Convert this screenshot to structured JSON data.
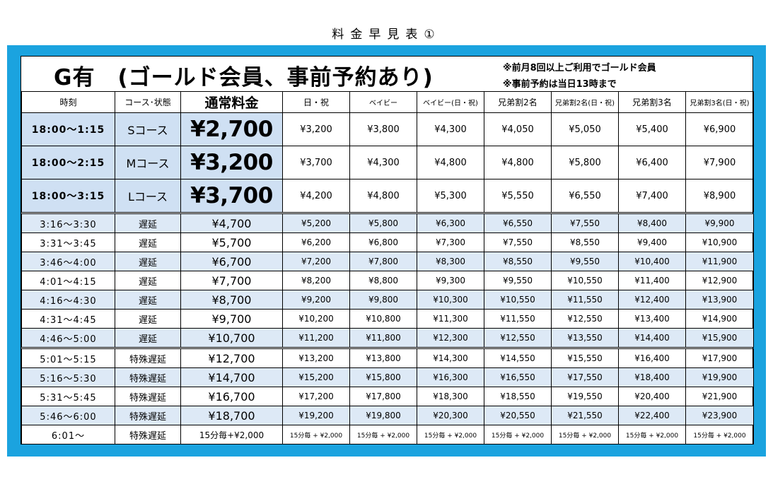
{
  "page_title": "料金早見表①",
  "header": {
    "title": "G有　(ゴールド会員、事前予約あり)",
    "note1": "※前月8回以上ご利用でゴールド会員",
    "note2": "※事前予約は当日13時まで"
  },
  "columns": [
    "時刻",
    "コース･状態",
    "通常料金",
    "日・祝",
    "ベイビー",
    "ベイビー(日・祝)",
    "兄弟割2名",
    "兄弟割2名(日・祝)",
    "兄弟割3名",
    "兄弟割3名(日・祝)"
  ],
  "main_rows": [
    {
      "time": "18:00〜1:15",
      "course": "Sコース",
      "normal": "¥2,700",
      "prices": [
        "¥3,200",
        "¥3,800",
        "¥4,300",
        "¥4,050",
        "¥5,050",
        "¥5,400",
        "¥6,900"
      ]
    },
    {
      "time": "18:00〜2:15",
      "course": "Mコース",
      "normal": "¥3,200",
      "prices": [
        "¥3,700",
        "¥4,300",
        "¥4,800",
        "¥4,800",
        "¥5,800",
        "¥6,400",
        "¥7,900"
      ]
    },
    {
      "time": "18:00〜3:15",
      "course": "Lコース",
      "normal": "¥3,700",
      "prices": [
        "¥4,200",
        "¥4,800",
        "¥5,300",
        "¥5,550",
        "¥6,550",
        "¥7,400",
        "¥8,900"
      ]
    }
  ],
  "late_rows": [
    {
      "time": "3:16〜3:30",
      "course": "遅延",
      "normal": "¥4,700",
      "prices": [
        "¥5,200",
        "¥5,800",
        "¥6,300",
        "¥6,550",
        "¥7,550",
        "¥8,400",
        "¥9,900"
      ]
    },
    {
      "time": "3:31〜3:45",
      "course": "遅延",
      "normal": "¥5,700",
      "prices": [
        "¥6,200",
        "¥6,800",
        "¥7,300",
        "¥7,550",
        "¥8,550",
        "¥9,400",
        "¥10,900"
      ]
    },
    {
      "time": "3:46〜4:00",
      "course": "遅延",
      "normal": "¥6,700",
      "prices": [
        "¥7,200",
        "¥7,800",
        "¥8,300",
        "¥8,550",
        "¥9,550",
        "¥10,400",
        "¥11,900"
      ]
    },
    {
      "time": "4:01〜4:15",
      "course": "遅延",
      "normal": "¥7,700",
      "prices": [
        "¥8,200",
        "¥8,800",
        "¥9,300",
        "¥9,550",
        "¥10,550",
        "¥11,400",
        "¥12,900"
      ]
    },
    {
      "time": "4:16〜4:30",
      "course": "遅延",
      "normal": "¥8,700",
      "prices": [
        "¥9,200",
        "¥9,800",
        "¥10,300",
        "¥10,550",
        "¥11,550",
        "¥12,400",
        "¥13,900"
      ]
    },
    {
      "time": "4:31〜4:45",
      "course": "遅延",
      "normal": "¥9,700",
      "prices": [
        "¥10,200",
        "¥10,800",
        "¥11,300",
        "¥11,550",
        "¥12,550",
        "¥13,400",
        "¥14,900"
      ]
    },
    {
      "time": "4:46〜5:00",
      "course": "遅延",
      "normal": "¥10,700",
      "prices": [
        "¥11,200",
        "¥11,800",
        "¥12,300",
        "¥12,550",
        "¥13,550",
        "¥14,400",
        "¥15,900"
      ]
    },
    {
      "time": "5:01〜5:15",
      "course": "特殊遅延",
      "normal": "¥12,700",
      "prices": [
        "¥13,200",
        "¥13,800",
        "¥14,300",
        "¥14,550",
        "¥15,550",
        "¥16,400",
        "¥17,900"
      ]
    },
    {
      "time": "5:16〜5:30",
      "course": "特殊遅延",
      "normal": "¥14,700",
      "prices": [
        "¥15,200",
        "¥15,800",
        "¥16,300",
        "¥16,550",
        "¥17,550",
        "¥18,400",
        "¥19,900"
      ]
    },
    {
      "time": "5:31〜5:45",
      "course": "特殊遅延",
      "normal": "¥16,700",
      "prices": [
        "¥17,200",
        "¥17,800",
        "¥18,300",
        "¥18,550",
        "¥19,550",
        "¥20,400",
        "¥21,900"
      ]
    },
    {
      "time": "5:46〜6:00",
      "course": "特殊遅延",
      "normal": "¥18,700",
      "prices": [
        "¥19,200",
        "¥19,800",
        "¥20,300",
        "¥20,550",
        "¥21,550",
        "¥22,400",
        "¥23,900"
      ]
    },
    {
      "time": "6:01〜",
      "course": "特殊遅延",
      "normal": "15分毎+¥2,000",
      "prices": [
        "15分毎 + ¥2,000",
        "15分毎 + ¥2,000",
        "15分毎 + ¥2,000",
        "15分毎 + ¥2,000",
        "15分毎 + ¥2,000",
        "15分毎 + ¥2,000",
        "15分毎 + ¥2,000"
      ]
    }
  ],
  "colors": {
    "frame": "#1ba3df",
    "main_cell": "#cfe0f3",
    "shaded_row": "#dde9f6"
  }
}
